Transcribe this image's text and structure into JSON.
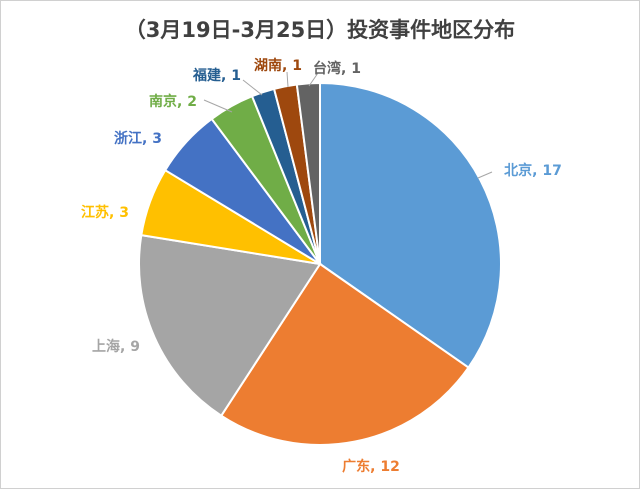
{
  "chart_data": {
    "type": "pie",
    "title": "（3月19日-3月25日）投资事件地区分布",
    "slices": [
      {
        "label": "北京",
        "value": 17,
        "color": "#5B9BD5",
        "label_text": "北京, 17"
      },
      {
        "label": "广东",
        "value": 12,
        "color": "#ED7D31",
        "label_text": "广东, 12"
      },
      {
        "label": "上海",
        "value": 9,
        "color": "#A5A5A5",
        "label_text": "上海, 9"
      },
      {
        "label": "江苏",
        "value": 3,
        "color": "#FFC000",
        "label_text": "江苏, 3"
      },
      {
        "label": "浙江",
        "value": 3,
        "color": "#4472C4",
        "label_text": "浙江, 3"
      },
      {
        "label": "南京",
        "value": 2,
        "color": "#70AD47",
        "label_text": "南京, 2"
      },
      {
        "label": "福建",
        "value": 1,
        "color": "#255E91",
        "label_text": "福建, 1"
      },
      {
        "label": "湖南",
        "value": 1,
        "color": "#9E480E",
        "label_text": "湖南, 1"
      },
      {
        "label": "台湾",
        "value": 1,
        "color": "#636363",
        "label_text": "台湾, 1"
      }
    ],
    "legend": "none",
    "data_labels": "outside with leader lines"
  }
}
